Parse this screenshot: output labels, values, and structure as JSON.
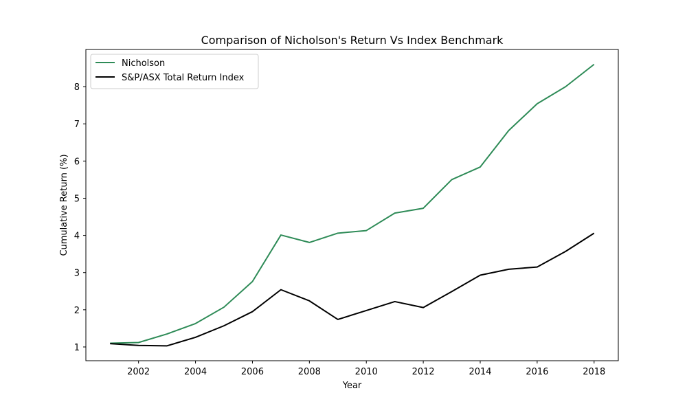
{
  "chart_data": {
    "type": "line",
    "title": "Comparison of Nicholson's Return Vs Index Benchmark",
    "xlabel": "Year",
    "ylabel": "Cumulative Return (%)",
    "x": [
      2001,
      2002,
      2003,
      2004,
      2005,
      2006,
      2007,
      2008,
      2009,
      2010,
      2011,
      2012,
      2013,
      2014,
      2015,
      2016,
      2017,
      2018
    ],
    "series": [
      {
        "name": "Nicholson",
        "color": "#2e8b57",
        "values": [
          1.1,
          1.12,
          1.35,
          1.63,
          2.07,
          2.76,
          4.01,
          3.81,
          4.06,
          4.13,
          4.6,
          4.73,
          5.5,
          5.84,
          6.82,
          7.54,
          8.0,
          8.6
        ]
      },
      {
        "name": "S&P/ASX Total Return Index",
        "color": "#000000",
        "values": [
          1.09,
          1.04,
          1.03,
          1.26,
          1.57,
          1.95,
          2.54,
          2.24,
          1.74,
          1.98,
          2.22,
          2.06,
          2.49,
          2.93,
          3.09,
          3.15,
          3.57,
          4.06
        ]
      }
    ],
    "xlim": [
      2000.15,
      2018.85
    ],
    "ylim": [
      0.63,
      9.0
    ],
    "xticks": [
      2002,
      2004,
      2006,
      2008,
      2010,
      2012,
      2014,
      2016,
      2018
    ],
    "yticks": [
      1,
      2,
      3,
      4,
      5,
      6,
      7,
      8
    ],
    "grid": false,
    "legend_position": "top-left"
  }
}
